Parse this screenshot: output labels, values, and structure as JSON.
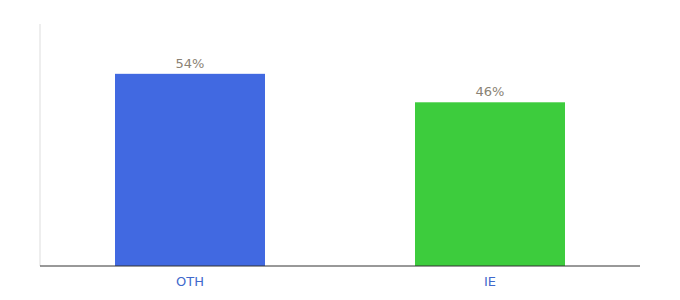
{
  "chart_data": {
    "type": "bar",
    "categories": [
      "OTH",
      "IE"
    ],
    "values": [
      54,
      46
    ],
    "value_labels": [
      "54%",
      "46%"
    ],
    "colors": [
      "#4169e1",
      "#3dcc3d"
    ],
    "ylim": [
      0,
      68
    ],
    "data_labels": true,
    "tick_labels": "x",
    "grid": false
  }
}
